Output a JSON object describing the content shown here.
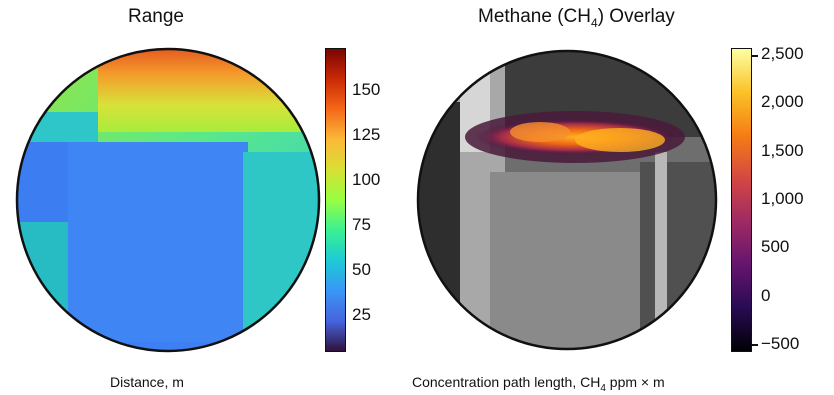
{
  "panels": [
    {
      "title": "Range",
      "caption": "Distance, m",
      "colorbar": {
        "colormap": "turbo",
        "ticks": [
          "150",
          "125",
          "100",
          "75",
          "50",
          "25"
        ]
      }
    },
    {
      "title_prefix": "Methane (CH",
      "title_subscript": "4",
      "title_suffix": ") Overlay",
      "caption_prefix": "Concentration path length, CH",
      "caption_subscript": "4",
      "caption_suffix": " ppm × m",
      "colorbar": {
        "colormap": "inferno",
        "ticks": [
          "2,500",
          "2,000",
          "1,500",
          "1,000",
          "500",
          "0",
          "−500"
        ]
      }
    }
  ],
  "colors": {
    "range_near": "#3d78f0",
    "range_mid": "#2ec8c8",
    "range_far": "#e8602a",
    "plume": "#f07a1a",
    "background_gray": "#707070"
  }
}
